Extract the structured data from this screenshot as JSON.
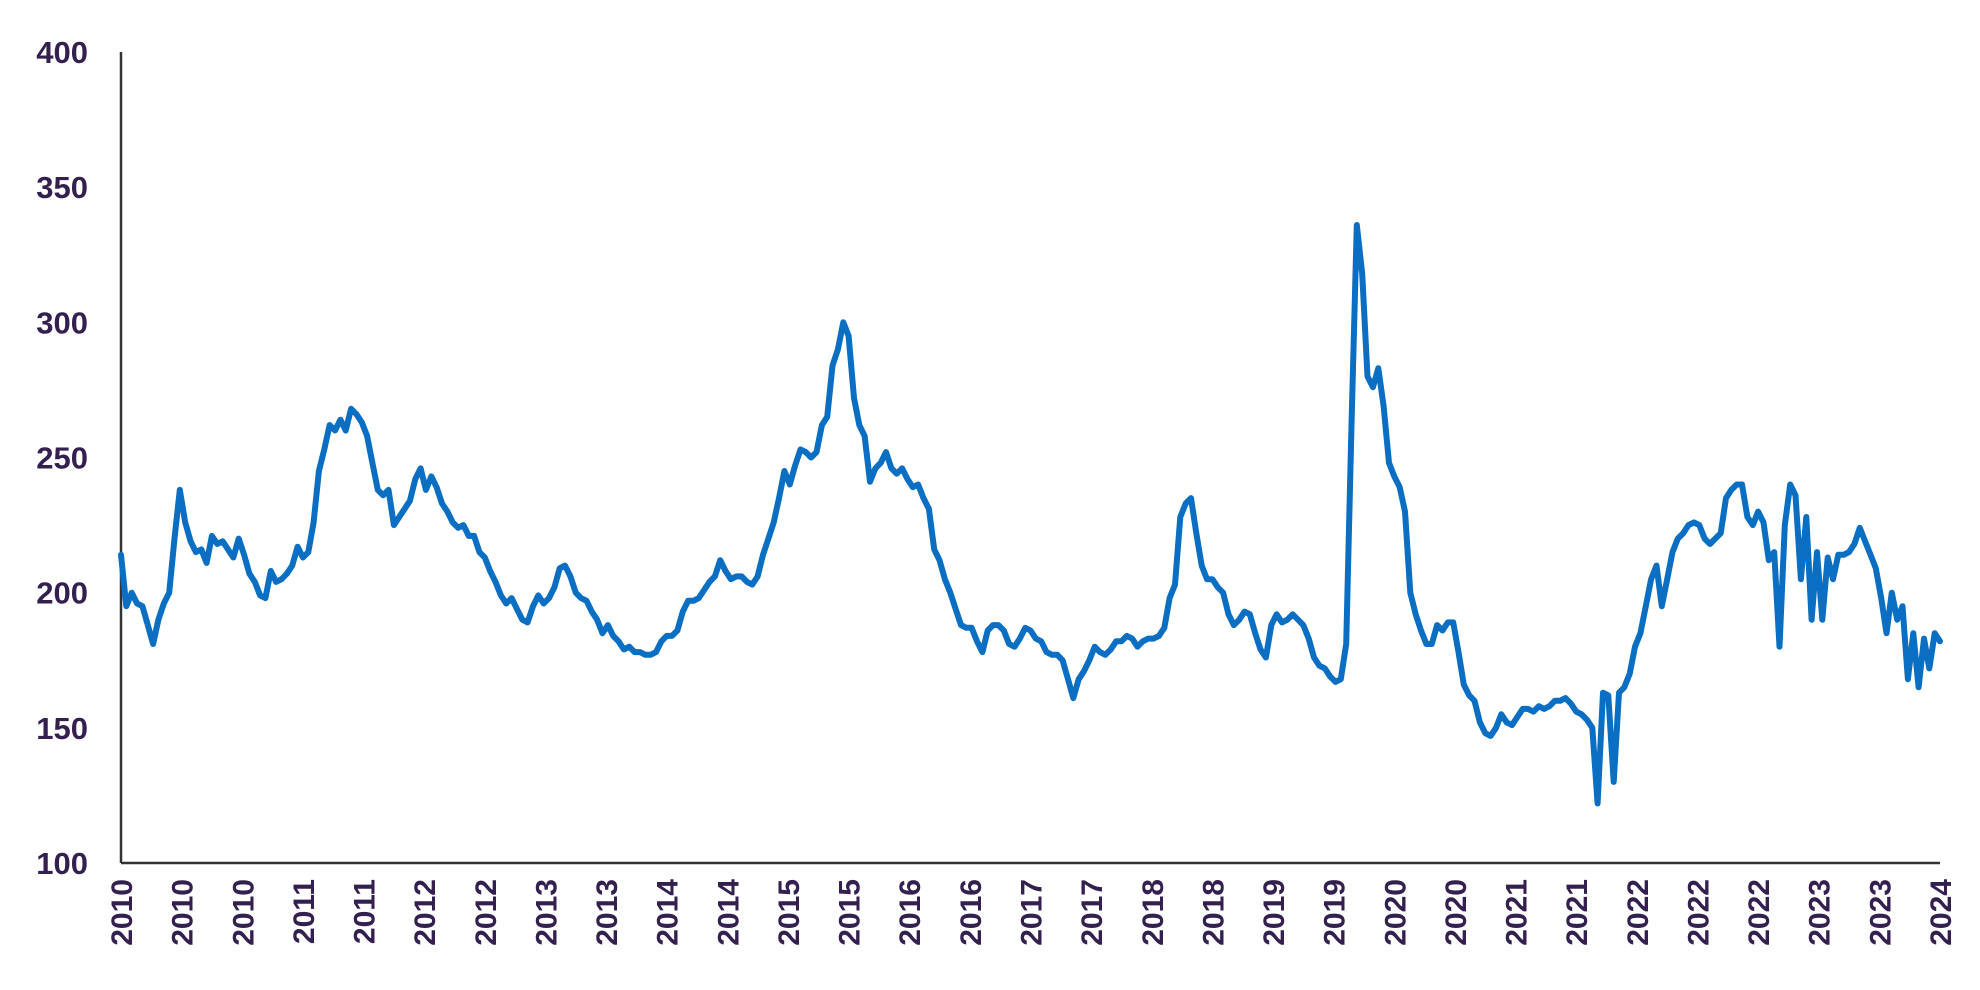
{
  "chart_data": {
    "type": "line",
    "title": "",
    "xlabel": "",
    "ylabel": "",
    "ylim": [
      100,
      400
    ],
    "yticks": [
      "100",
      "150",
      "200",
      "250",
      "300",
      "350",
      "400"
    ],
    "xticks": [
      "2010",
      "2010",
      "2010",
      "2011",
      "2011",
      "2012",
      "2012",
      "2013",
      "2013",
      "2014",
      "2014",
      "2015",
      "2015",
      "2016",
      "2016",
      "2017",
      "2017",
      "2018",
      "2018",
      "2019",
      "2019",
      "2020",
      "2020",
      "2021",
      "2021",
      "2022",
      "2022",
      "2022",
      "2023",
      "2023",
      "2024"
    ],
    "grid": false,
    "legend": "none",
    "line_color": "#0a6fc2",
    "series": [
      {
        "values": [
          214,
          195,
          200,
          196,
          195,
          188,
          181,
          190,
          196,
          200,
          220,
          238,
          226,
          219,
          215,
          216,
          211,
          221,
          218,
          219,
          216,
          213,
          220,
          214,
          207,
          204,
          199,
          198,
          208,
          204,
          205,
          207,
          210,
          217,
          213,
          215,
          226,
          245,
          253,
          262,
          260,
          264,
          260,
          268,
          266,
          263,
          258,
          248,
          238,
          236,
          238,
          225,
          228,
          231,
          234,
          242,
          246,
          238,
          243,
          239,
          233,
          230,
          226,
          224,
          225,
          221,
          221,
          215,
          213,
          208,
          204,
          199,
          196,
          198,
          194,
          190,
          189,
          195,
          199,
          196,
          198,
          202,
          209,
          210,
          206,
          200,
          198,
          197,
          193,
          190,
          185,
          188,
          184,
          182,
          179,
          180,
          178,
          178,
          177,
          177,
          178,
          182,
          184,
          184,
          186,
          193,
          197,
          197,
          198,
          201,
          204,
          206,
          212,
          208,
          205,
          206,
          206,
          204,
          203,
          206,
          214,
          220,
          226,
          235,
          245,
          240,
          247,
          253,
          252,
          250,
          252,
          262,
          265,
          284,
          290,
          300,
          295,
          272,
          262,
          258,
          241,
          246,
          248,
          252,
          246,
          244,
          246,
          242,
          239,
          240,
          235,
          231,
          216,
          212,
          205,
          200,
          194,
          188,
          187,
          187,
          182,
          178,
          186,
          188,
          188,
          186,
          181,
          180,
          183,
          187,
          186,
          183,
          182,
          178,
          177,
          177,
          175,
          168,
          161,
          168,
          171,
          175,
          180,
          178,
          177,
          179,
          182,
          182,
          184,
          183,
          180,
          182,
          183,
          183,
          184,
          187,
          198,
          203,
          228,
          233,
          235,
          222,
          210,
          205,
          205,
          202,
          200,
          192,
          188,
          190,
          193,
          192,
          185,
          179,
          176,
          188,
          192,
          189,
          190,
          192,
          190,
          188,
          183,
          176,
          173,
          172,
          169,
          167,
          168,
          181,
          262,
          336,
          318,
          280,
          276,
          283,
          269,
          248,
          243,
          239,
          230,
          200,
          192,
          186,
          181,
          181,
          188,
          186,
          189,
          189,
          178,
          166,
          162,
          160,
          152,
          148,
          147,
          150,
          155,
          152,
          151,
          154,
          157,
          157,
          156,
          158,
          157,
          158,
          160,
          160,
          161,
          159,
          156,
          155,
          153,
          150,
          122,
          163,
          162,
          130,
          163,
          165,
          170,
          180,
          185,
          195,
          205,
          210,
          195,
          205,
          215,
          220,
          222,
          225,
          226,
          225,
          220,
          218,
          220,
          222,
          235,
          238,
          240,
          240,
          228,
          225,
          230,
          226,
          212,
          215,
          180,
          225,
          240,
          236,
          205,
          228,
          190,
          215,
          190,
          213,
          205,
          214,
          214,
          215,
          218,
          224,
          219,
          214,
          209,
          198,
          185,
          200,
          190,
          195,
          168,
          185,
          165,
          183,
          172,
          185,
          182
        ]
      }
    ]
  }
}
